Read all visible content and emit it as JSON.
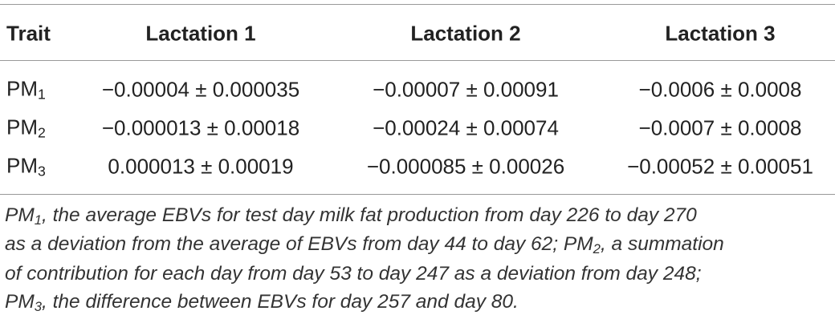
{
  "table": {
    "header": [
      "Trait",
      "Lactation 1",
      "Lactation 2",
      "Lactation 3"
    ],
    "rows": [
      [
        {
          "base": "PM",
          "sub": "1"
        },
        "−0.00004 ± 0.000035",
        "−0.00007 ± 0.00091",
        "−0.0006 ± 0.0008"
      ],
      [
        {
          "base": "PM",
          "sub": "2"
        },
        "−0.000013 ± 0.00018",
        "−0.00024 ± 0.00074",
        "−0.0007 ± 0.0008"
      ],
      [
        {
          "base": "PM",
          "sub": "3"
        },
        "0.000013 ± 0.00019",
        "−0.000085 ± 0.00026",
        "−0.00052 ± 0.00051"
      ]
    ]
  },
  "footnote": {
    "lines": [
      [
        {
          "text": "PM"
        },
        {
          "sub": "1"
        },
        {
          "text": ", the average EBVs for test day milk fat production from day 226 to day 270"
        }
      ],
      [
        {
          "text": "as a deviation from the average of EBVs from day 44 to day 62; PM"
        },
        {
          "sub": "2"
        },
        {
          "text": ", a summation"
        }
      ],
      [
        {
          "text": "of contribution for each day from day 53 to day 247 as a deviation from day 248;"
        }
      ],
      [
        {
          "text": "PM"
        },
        {
          "sub": "3"
        },
        {
          "text": ", the difference between EBVs for day 257 and day 80."
        }
      ]
    ]
  }
}
